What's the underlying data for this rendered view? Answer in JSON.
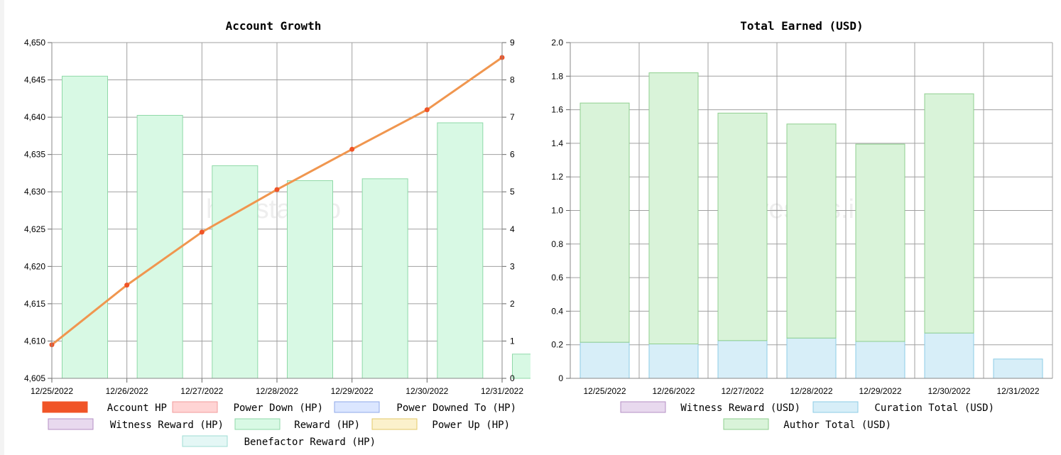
{
  "colors": {
    "account_hp": "#f05427",
    "account_hp_line": "#f0964f",
    "power_down": "#ffd4d4",
    "power_down_border": "#f29b9b",
    "power_downed_to": "#dbe6ff",
    "power_downed_to_border": "#8fa8e8",
    "witness_reward": "#e8d9ee",
    "witness_reward_border": "#b58fc4",
    "reward_hp": "#d8f9e4",
    "reward_hp_border": "#8fd9a8",
    "power_up": "#fbf1cc",
    "power_up_border": "#e3c96a",
    "benefactor": "#e4f7f5",
    "benefactor_border": "#9fdcd4",
    "curation": "#d7eef8",
    "curation_border": "#8ccce6",
    "author": "#d9f3d9",
    "author_border": "#8fcf8f",
    "grid": "#a0a0a0"
  },
  "chart_data": [
    {
      "type": "bar",
      "title": "Account Growth",
      "watermark": "hivestats.io",
      "categories": [
        "12/25/2022",
        "12/26/2022",
        "12/27/2022",
        "12/28/2022",
        "12/29/2022",
        "12/30/2022",
        "12/31/2022"
      ],
      "y_left": {
        "ylim": [
          4605,
          4650
        ],
        "ticks": [
          "4,605",
          "4,610",
          "4,615",
          "4,620",
          "4,625",
          "4,630",
          "4,635",
          "4,640",
          "4,645",
          "4,650"
        ]
      },
      "y_right": {
        "ylim": [
          0,
          9
        ],
        "ticks": [
          "0",
          "1",
          "2",
          "3",
          "4",
          "5",
          "6",
          "7",
          "8",
          "9"
        ]
      },
      "series": [
        {
          "name": "Account HP",
          "kind": "line",
          "axis": "left",
          "values": [
            4609.5,
            4617.5,
            4624.6,
            4630.3,
            4635.7,
            4641.0,
            4648.0
          ]
        },
        {
          "name": "Reward (HP)",
          "kind": "bar",
          "axis": "right",
          "values": [
            8.1,
            7.05,
            5.7,
            5.3,
            5.35,
            6.85,
            0.65
          ]
        }
      ],
      "legend": [
        {
          "label": "Account HP",
          "color_key": "account_hp"
        },
        {
          "label": "Power Down (HP)",
          "color_key": "power_down"
        },
        {
          "label": "Power Downed To (HP)",
          "color_key": "power_downed_to"
        },
        {
          "label": "Witness Reward (HP)",
          "color_key": "witness_reward"
        },
        {
          "label": "Reward (HP)",
          "color_key": "reward_hp"
        },
        {
          "label": "Power Up (HP)",
          "color_key": "power_up"
        },
        {
          "label": "Benefactor Reward (HP)",
          "color_key": "benefactor"
        }
      ]
    },
    {
      "type": "bar",
      "stacked": true,
      "title": "Total Earned (USD)",
      "watermark": "hivestats.io",
      "categories": [
        "12/25/2022",
        "12/26/2022",
        "12/27/2022",
        "12/28/2022",
        "12/29/2022",
        "12/30/2022",
        "12/31/2022"
      ],
      "ylim": [
        0,
        2.0
      ],
      "ticks": [
        "0",
        "0.2",
        "0.4",
        "0.6",
        "0.8",
        "1.0",
        "1.2",
        "1.4",
        "1.6",
        "1.8",
        "2.0"
      ],
      "series": [
        {
          "name": "Witness Reward (USD)",
          "values": [
            0,
            0,
            0,
            0,
            0,
            0,
            0
          ]
        },
        {
          "name": "Curation Total (USD)",
          "values": [
            0.215,
            0.205,
            0.225,
            0.24,
            0.22,
            0.27,
            0.115
          ]
        },
        {
          "name": "Author Total (USD)",
          "values": [
            1.425,
            1.615,
            1.355,
            1.275,
            1.175,
            1.425,
            0
          ]
        }
      ],
      "legend": [
        {
          "label": "Witness Reward (USD)",
          "color_key": "witness_reward"
        },
        {
          "label": "Curation Total (USD)",
          "color_key": "curation"
        },
        {
          "label": "Author Total (USD)",
          "color_key": "author"
        }
      ]
    }
  ]
}
